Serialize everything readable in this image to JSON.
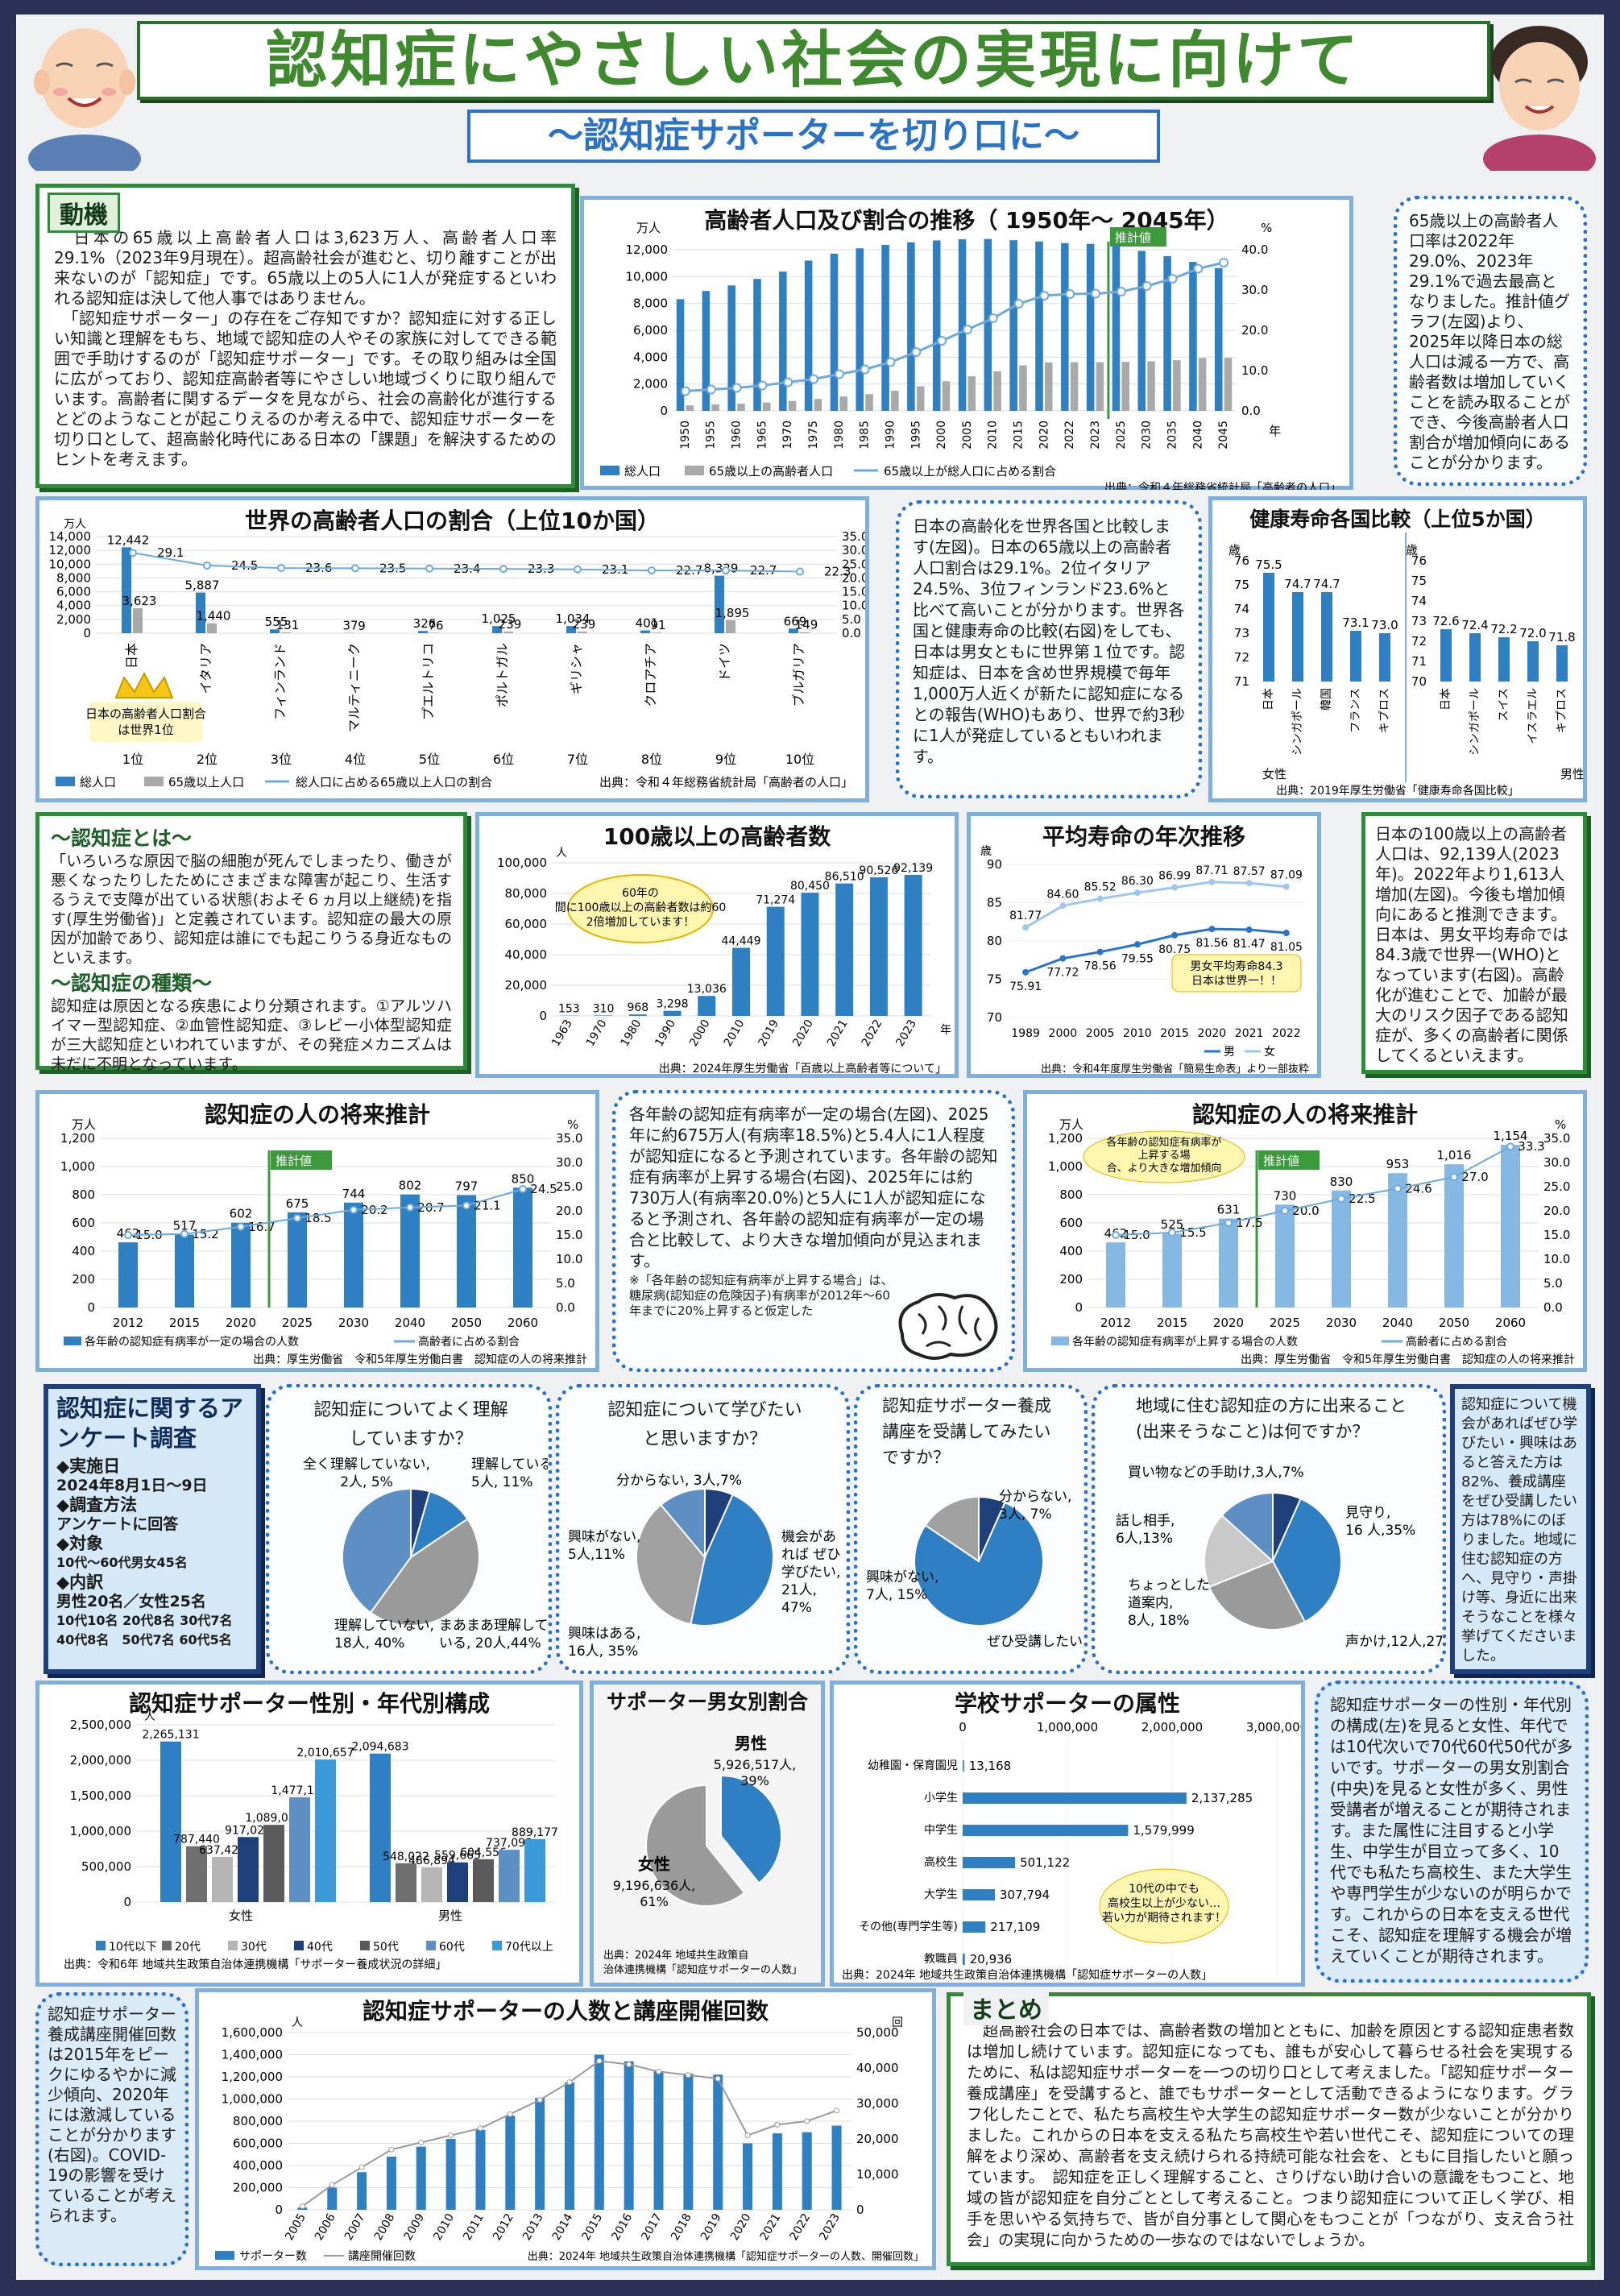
{
  "header": {
    "title": "認知症にやさしい社会の実現に向けて",
    "subtitle": "〜認知症サポーターを切り口に〜"
  },
  "motive": {
    "heading": "動機",
    "p1": "　日本の65歳以上高齢者人口は3,623万人、高齢者人口率29.1%（2023年9月現在）。超高齢社会が進むと、切り離すことが出来ないのが「認知症」です。65歳以上の5人に1人が発症するといわれる認知症は決して他人事ではありません。",
    "p2": "　「認知症サポーター」の存在をご存知ですか？認知症に対する正しい知識と理解をもち、地域で認知症の人やその家族に対してできる範囲で手助けするのが「認知症サポーター」です。その取り組みは全国に広がっており、認知症高齢者等にやさしい地域づくりに取り組んでいます。高齢者に関するデータを見ながら、社会の高齢化が進行するとどのようなことが起こりえるのか考える中で、認知症サポーターを切り口として、超高齢化時代にある日本の「課題」を解決するためのヒントを考えます。"
  },
  "pop_trend": {
    "title": "高齢者人口及び割合の推移（ 1950年〜 2045年）",
    "unit_left": "万人",
    "unit_right": "%",
    "estimate_label": "推計値",
    "x_suffix": "年",
    "source": "出典：令和４年総務省統計局「高齢者の人口」",
    "legend": [
      "総人口",
      "65歳以上の高齢者人口",
      "65歳以上が総人口に占める割合"
    ]
  },
  "pop_note": "65歳以上の高齢者人口率は2022年29.0%、2023年29.1%で過去最高となりました。推計値グラフ(左図)より、2025年以降日本の総人口は減る一方で、高齢者数は増加していくことを読み取ることができ、今後高齢者人口割合が増加傾向にあることが分かります。",
  "world": {
    "title": "世界の高齢者人口の割合（上位10か国）",
    "unit": "万人",
    "crown": "日本の高齢者人口割合は世界1位",
    "source": "出典：令和４年総務省統計局「高齢者の人口」",
    "legend": [
      "総人口",
      "65歳以上人口",
      "総人口に占める65歳以上人口の割合"
    ]
  },
  "world_note": "日本の高齢化を世界各国と比較します(左図)。日本の65歳以上の高齢者人口割合は29.1%。2位イタリア24.5%、3位フィンランド23.6%と比べて高いことが分かります。世界各国と健康寿命の比較(右図)をしても、日本は男女ともに世界第１位です。認知症は、日本を含め世界規模で毎年1,000万人近くが新たに認知症になるとの報告(WHO)もあり、世界で約3秒に1人が発症しているともいわれます。",
  "health": {
    "title": "健康寿命各国比較（上位5か国）",
    "unit": "歳",
    "female": "女性",
    "male": "男性",
    "source": "出典：2019年厚生労働省「健康寿命各国比較」"
  },
  "ninchi": {
    "h1": "〜認知症とは〜",
    "p1": "「いろいろな原因で脳の細胞が死んでしまったり、働きが悪くなったりしたためにさまざまな障害が起こり、生活するうえで支障が出ている状態(およそ６ヵ月以上継続)を指す(厚生労働省)」と定義されています。認知症の最大の原因が加齢であり、認知症は誰にでも起こりうる身近なものといえます。",
    "h2": "〜認知症の種類〜",
    "p2": "認知症は原因となる疾患により分類されます。①アルツハイマー型認知症、②血管性認知症、③レビー小体型認知症が三大認知症といわれていますが、その発症メカニズムは未だに不明となっています。"
  },
  "centenarian": {
    "title": "100歳以上の高齢者数",
    "unit": "人",
    "callout": "60年の間に100歳以上の高齢者数は約602倍増加しています！",
    "x_suffix": "年",
    "source": "出典：2024年厚生労働省「百歳以上高齢者等について」"
  },
  "lifespan": {
    "title": "平均寿命の年次推移",
    "unit": "歳",
    "callout": "男女平均寿命84.3歳 日本は世界一！！",
    "legend": [
      "男",
      "女"
    ],
    "source": "出典：令和4年度厚生労働省「簡易生命表」より一部抜粋"
  },
  "cent_note": "日本の100歳以上の高齢者人口は、92,139人(2023年)。2022年より1,613人増加(左図)。今後も増加傾向にあると推測できます。日本は、男女平均寿命では84.3歳で世界一(WHO)となっています(右図)。高齢化が進むことで、加齢が最大のリスク因子である認知症が、多くの高齢者に関係してくるといえます。",
  "future1": {
    "title": "認知症の人の将来推計",
    "unit_left": "万人",
    "unit_right": "%",
    "estimate_label": "推計値",
    "legend": [
      "各年齢の認知症有病率が一定の場合の人数",
      "高齢者に占める割合"
    ],
    "source": "出典：厚生労働省　令和5年厚生労働白書　認知症の人の将来推計"
  },
  "future_note": {
    "text": "各年齢の認知症有病率が一定の場合(左図)、2025年に約675万人(有病率18.5%)と5.4人に1人程度が認知症になると予測されています。各年齢の認知症有病率が上昇する場合(右図)、2025年には約730万人(有病率20.0%)と5人に1人が認知症になると予測され、各年齢の認知症有病率が一定の場合と比較して、より大きな増加傾向が見込まれます。",
    "foot": "※「各年齢の認知症有病率が上昇する場合」は、糖尿病(認知症の危険因子)有病率が2012年〜60年までに20%上昇すると仮定した"
  },
  "future2": {
    "title": "認知症の人の将来推計",
    "unit_left": "万人",
    "unit_right": "%",
    "estimate_label": "推計値",
    "callout": "各年齢の認知症有病率が上昇する場合、より大きな増加傾向",
    "legend": [
      "各年齢の認知症有病率が上昇する場合の人数",
      "高齢者に占める割合"
    ],
    "source": "出典：厚生労働省　令和5年厚生労働白書　認知症の人の将来推計"
  },
  "survey": {
    "title": "認知症に関するアンケート調査",
    "lines": [
      "◆実施日",
      "2024年8月1日〜9日",
      "◆調査方法",
      "アンケートに回答",
      "◆対象",
      "10代〜60代男女45名",
      "◆内訳",
      "男性20名／女性25名",
      "10代10名 20代8名 30代7名",
      "40代8名　50代7名 60代5名"
    ]
  },
  "pies": [
    {
      "title": "認知症についてよく理解していますか？",
      "labels": [
        "全く理解していない, 2人, 5%",
        "理解している, 5人, 11%",
        "まあまあ理解している, 20人,44%",
        "理解していない, 18人, 40%"
      ]
    },
    {
      "title": "認知症について学びたいと思いますか？",
      "labels": [
        "分からない, 3人,7%",
        "機会があればぜひ学びたい, 21人, 47%",
        "興味がない, 5人,11%",
        "興味はある, 16人, 35%"
      ]
    },
    {
      "title": "認知症サポーター養成講座を受講してみたいですか？",
      "labels": [
        "分からない, 3人, 7%",
        "興味がない, 7人, 15%",
        "ぜひ受講したい, 35人, 78%"
      ]
    },
    {
      "title": "地域に住む認知症の方に出来ること(出来そうなこと)は何ですか？",
      "labels": [
        "買い物などの手助け,3人,7%",
        "見守り, 16 人,35%",
        "話し相手, 6人,13%",
        "ちょっとした道案内, 8人, 18%",
        "声かけ,12人,27%"
      ]
    }
  ],
  "survey_note": "認知症について機会があればぜひ学びたい・興味はあると答えた方は82%、養成講座をぜひ受講したい方は78%にのぼりました。地域に住む認知症の方へ、見守り・声掛け等、身近に出来そうなことを様々挙げてくださいました。",
  "gender_age": {
    "title": "認知症サポーター性別・年代別構成",
    "unit": "人",
    "groups": [
      "女性",
      "男性"
    ],
    "legend": [
      "10代以下",
      "20代",
      "30代",
      "40代",
      "50代",
      "60代",
      "70代以上"
    ],
    "source": "出典：令和6年 地域共生政策自治体連携機構「サポーター養成状況の詳細」"
  },
  "gender": {
    "title": "サポーター男女別割合",
    "male": "男性",
    "male_val": "5,926,517人, 39%",
    "female": "女性",
    "female_val": "9,196,636人, 61%",
    "source": "出典：2024年 地域共生政策自治体連携機構「認知症サポーターの人数」"
  },
  "school": {
    "title": "学校サポーターの属性",
    "callout": "10代の中でも高校生以上が少ない…若い力が期待されます！",
    "source": "出典：2024年 地域共生政策自治体連携機構「認知症サポーターの人数」"
  },
  "school_note": "認知症サポーターの性別・年代別の構成(左)を見ると女性、年代では10代次いで70代60代50代が多いです。サポーターの男女別割合(中央)を見ると女性が多く、男性受講者が増えることが期待されます。また属性に注目すると小学生、中学生が目立って多く、10代でも私たち高校生、また大学生や専門学生が少ないのが明らかです。これからの日本を支える世代こそ、認知症を理解する機会が増えていくことが期待されます。",
  "course_note": "認知症サポーター養成講座開催回数は2015年をピークにゆるやかに減少傾向、2020年には激減していることが分かります(右図)。COVID-19の影響を受けていることが考えられます。",
  "supporters": {
    "title": "認知症サポーターの人数と講座開催回数",
    "unit_left": "人",
    "unit_right": "回",
    "legend": [
      "サポーター数",
      "講座開催回数"
    ],
    "source": "出典：2024年 地域共生政策自治体連携機構「認知症サポーターの人数、開催回数」"
  },
  "summary": {
    "heading": "まとめ",
    "text": "　超高齢社会の日本では、高齢者数の増加とともに、加齢を原因とする認知症患者数は増加し続けています。認知症になっても、誰もが安心して暮らせる社会を実現するために、私は認知症サポーターを一つの切り口として考えました。「認知症サポーター養成講座」を受講すると、誰でもサポーターとして活動できるようになります。グラフ化したことで、私たち高校生や大学生の認知症サポーター数が少ないことが分かりました。これからの日本を支える私たち高校生や若い世代こそ、認知症についての理解をより深め、高齢者を支え続けられる持続可能な社会を、ともに目指したいと願っています。　認知症を正しく理解すること、さりげない助け合いの意識をもつこと、地域の皆が認知症を自分ごととして考えること。つまり認知症について正しく学び、相手を思いやる気持ちで、皆が自分事として関心をもつことが「つながり、支え合う社会」の実現に向かうための一歩なのではないでしょうか。"
  },
  "chart_data": [
    {
      "id": "pop",
      "type": "bar",
      "categories": [
        "1950",
        "1955",
        "1960",
        "1965",
        "1970",
        "1975",
        "1980",
        "1985",
        "1990",
        "1995",
        "2000",
        "2005",
        "2010",
        "2015",
        "2020",
        "2022",
        "2023",
        "2025",
        "2030",
        "2035",
        "2040",
        "2045"
      ],
      "series": [
        {
          "name": "総人口",
          "values": [
            8320,
            8928,
            9342,
            9828,
            10372,
            11194,
            11706,
            12105,
            12361,
            12557,
            12693,
            12777,
            12806,
            12709,
            12615,
            12495,
            12435,
            12326,
            11913,
            11522,
            11092,
            10642
          ]
        },
        {
          "name": "65歳以上の高齢者人口",
          "values": [
            411,
            475,
            535,
            618,
            733,
            887,
            1065,
            1247,
            1493,
            1828,
            2204,
            2576,
            2948,
            3387,
            3603,
            3624,
            3623,
            3653,
            3696,
            3773,
            3928,
            3945
          ]
        },
        {
          "name": "65歳以上が総人口に占める割合",
          "values": [
            4.9,
            5.3,
            5.7,
            6.3,
            7.1,
            7.9,
            9.1,
            10.3,
            12.1,
            14.6,
            17.4,
            20.2,
            23.0,
            26.6,
            28.6,
            29.0,
            29.1,
            29.6,
            31.0,
            32.8,
            35.3,
            36.8
          ]
        }
      ],
      "ylim": [
        0,
        14000
      ],
      "ylim_right": [
        0,
        40
      ]
    },
    {
      "id": "world",
      "type": "bar",
      "categories": [
        "日本",
        "イタリア",
        "フィンランド",
        "マルティニーク",
        "プエルトリコ",
        "ポルトガル",
        "ギリシャ",
        "クロアチア",
        "ドイツ",
        "ブルガリア"
      ],
      "ranks": [
        "1位",
        "2位",
        "3位",
        "4位",
        "5位",
        "6位",
        "7位",
        "8位",
        "9位",
        "10位"
      ],
      "series": [
        {
          "name": "総人口",
          "values": [
            12442,
            5887,
            555,
            37,
            326,
            1025,
            1034,
            401,
            8329,
            669
          ]
        },
        {
          "name": "65歳以上人口",
          "values": [
            3623,
            1440,
            131,
            9,
            76,
            239,
            239,
            91,
            1895,
            149
          ]
        },
        {
          "name": "総人口に占める65歳以上人口の割合",
          "values": [
            29.1,
            24.5,
            23.6,
            23.5,
            23.4,
            23.3,
            23.1,
            22.7,
            22.7,
            22.3
          ]
        }
      ],
      "ylim": [
        0,
        14000
      ],
      "ylim_right": [
        0,
        35
      ]
    },
    {
      "id": "health_f",
      "type": "bar",
      "categories": [
        "日本",
        "シンガポール",
        "韓国",
        "フランス",
        "キプロス"
      ],
      "values": [
        75.5,
        74.7,
        74.7,
        73.1,
        73.0
      ],
      "ylim": [
        71,
        76
      ]
    },
    {
      "id": "health_m",
      "type": "bar",
      "categories": [
        "日本",
        "シンガポール",
        "スイス",
        "イスラエル",
        "キプロス"
      ],
      "values": [
        72.6,
        72.4,
        72.2,
        72.0,
        71.8
      ],
      "ylim": [
        70,
        76
      ]
    },
    {
      "id": "cent",
      "type": "bar",
      "categories": [
        "1963",
        "1970",
        "1980",
        "1990",
        "2000",
        "2010",
        "2019",
        "2020",
        "2021",
        "2022",
        "2023"
      ],
      "values": [
        153,
        310,
        968,
        3298,
        13036,
        44449,
        71274,
        80450,
        86510,
        90526,
        92139
      ],
      "ylim": [
        0,
        100000
      ]
    },
    {
      "id": "life",
      "type": "line",
      "categories": [
        "1989",
        "2000",
        "2005",
        "2010",
        "2015",
        "2020",
        "2021",
        "2022"
      ],
      "series": [
        {
          "name": "男",
          "values": [
            75.91,
            77.72,
            78.56,
            79.55,
            80.75,
            81.56,
            81.47,
            81.05
          ]
        },
        {
          "name": "女",
          "values": [
            81.77,
            84.6,
            85.52,
            86.3,
            86.99,
            87.71,
            87.57,
            87.09
          ]
        }
      ],
      "ylim": [
        70,
        90
      ]
    },
    {
      "id": "future1",
      "type": "bar",
      "categories": [
        "2012",
        "2015",
        "2020",
        "2025",
        "2030",
        "2040",
        "2050",
        "2060"
      ],
      "series": [
        {
          "name": "各年齢の認知症有病率が一定の場合の人数",
          "values": [
            462,
            517,
            602,
            675,
            744,
            802,
            797,
            850
          ]
        },
        {
          "name": "高齢者に占める割合",
          "values": [
            15.0,
            15.2,
            16.7,
            18.5,
            20.2,
            20.7,
            21.1,
            24.5
          ]
        }
      ],
      "ylim": [
        0,
        1200
      ],
      "ylim_right": [
        0,
        35
      ]
    },
    {
      "id": "future2",
      "type": "bar",
      "categories": [
        "2012",
        "2015",
        "2020",
        "2025",
        "2030",
        "2040",
        "2050",
        "2060"
      ],
      "series": [
        {
          "name": "各年齢の認知症有病率が上昇する場合の人数",
          "values": [
            462,
            525,
            631,
            730,
            830,
            953,
            1016,
            1154
          ]
        },
        {
          "name": "高齢者に占める割合",
          "values": [
            15.0,
            15.5,
            17.5,
            20.0,
            22.5,
            24.6,
            27.0,
            33.3
          ]
        }
      ],
      "ylim": [
        0,
        1200
      ],
      "ylim_right": [
        0,
        35
      ]
    },
    {
      "id": "pie1",
      "type": "pie",
      "values": [
        2,
        5,
        20,
        18
      ]
    },
    {
      "id": "pie2",
      "type": "pie",
      "values": [
        3,
        21,
        16,
        5
      ]
    },
    {
      "id": "pie3",
      "type": "pie",
      "values": [
        3,
        35,
        7
      ]
    },
    {
      "id": "pie4",
      "type": "pie",
      "values": [
        3,
        16,
        12,
        8,
        6
      ]
    },
    {
      "id": "genage",
      "type": "bar",
      "categories": [
        "女性",
        "男性"
      ],
      "series": [
        {
          "name": "10代以下",
          "values": [
            2265131,
            2094683
          ]
        },
        {
          "name": "20代",
          "values": [
            787440,
            548022
          ]
        },
        {
          "name": "30代",
          "values": [
            637428,
            486894
          ]
        },
        {
          "name": "40代",
          "values": [
            917023,
            559665
          ]
        },
        {
          "name": "50代",
          "values": [
            1089082,
            604556
          ]
        },
        {
          "name": "60代",
          "values": [
            1477124,
            737098
          ]
        },
        {
          "name": "70代以上",
          "values": [
            2010657,
            889177
          ]
        }
      ],
      "ylim": [
        0,
        2500000
      ]
    },
    {
      "id": "gender",
      "type": "pie",
      "values": [
        5926517,
        9196636
      ]
    },
    {
      "id": "school",
      "type": "bar",
      "categories": [
        "幼稚園・保育園児",
        "小学生",
        "中学生",
        "高校生",
        "大学生",
        "その他(専門学生等)",
        "教職員"
      ],
      "values": [
        13168,
        2137285,
        1579999,
        501122,
        307794,
        217109,
        20936
      ],
      "ylim": [
        0,
        3000000
      ]
    },
    {
      "id": "supp",
      "type": "bar",
      "categories": [
        "2005",
        "2006",
        "2007",
        "2008",
        "2009",
        "2010",
        "2011",
        "2012",
        "2013",
        "2014",
        "2015",
        "2016",
        "2017",
        "2018",
        "2019",
        "2020",
        "2021",
        "2022",
        "2023"
      ],
      "series": [
        {
          "name": "サポーター数",
          "values": [
            20000,
            200000,
            340000,
            480000,
            570000,
            640000,
            720000,
            850000,
            1010000,
            1150000,
            1400000,
            1340000,
            1250000,
            1230000,
            1220000,
            600000,
            690000,
            700000,
            760000
          ]
        },
        {
          "name": "講座開催回数",
          "values": [
            1000,
            7000,
            12000,
            17000,
            19000,
            21000,
            23000,
            27000,
            31000,
            36000,
            42000,
            41000,
            39000,
            38000,
            37000,
            21000,
            24000,
            25000,
            28000
          ]
        }
      ],
      "ylim": [
        0,
        1600000
      ],
      "ylim_right": [
        0,
        50000
      ]
    }
  ],
  "colors": {
    "bar_blue": "#2f7fc3",
    "bar_gray": "#a9a9a9",
    "line_blue": "#6fa8dc",
    "frame_green": "#2e8b3a",
    "frame_blue": "#2a72c8"
  }
}
